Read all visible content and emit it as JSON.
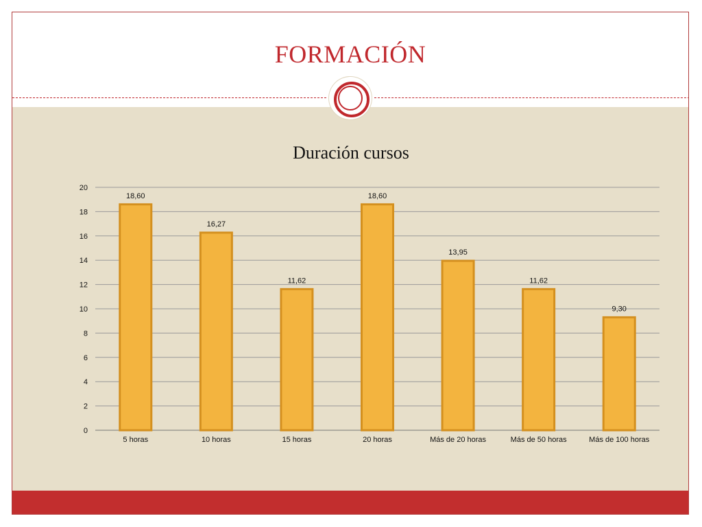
{
  "slide": {
    "title": "FORMACIÓN",
    "colors": {
      "accent": "#c0282d",
      "panel": "#e7dfca",
      "bar": "#f3b43f",
      "bar_edge": "#d4901f"
    }
  },
  "chart_data": {
    "type": "bar",
    "title": "Duración cursos",
    "categories": [
      "5 horas",
      "10 horas",
      "15 horas",
      "20 horas",
      "Más de 20 horas",
      "Más de 50 horas",
      "Más de 100 horas"
    ],
    "values": [
      18.6,
      16.27,
      11.62,
      18.6,
      13.95,
      11.62,
      9.3
    ],
    "data_labels": [
      "18,60",
      "16,27",
      "11,62",
      "18,60",
      "13,95",
      "11,62",
      "9,30"
    ],
    "yticks": [
      "0",
      "2",
      "4",
      "6",
      "8",
      "10",
      "12",
      "14",
      "16",
      "18",
      "20"
    ],
    "ylim": [
      0,
      20
    ],
    "xlabel": "",
    "ylabel": "",
    "grid": true,
    "legend": "none"
  }
}
